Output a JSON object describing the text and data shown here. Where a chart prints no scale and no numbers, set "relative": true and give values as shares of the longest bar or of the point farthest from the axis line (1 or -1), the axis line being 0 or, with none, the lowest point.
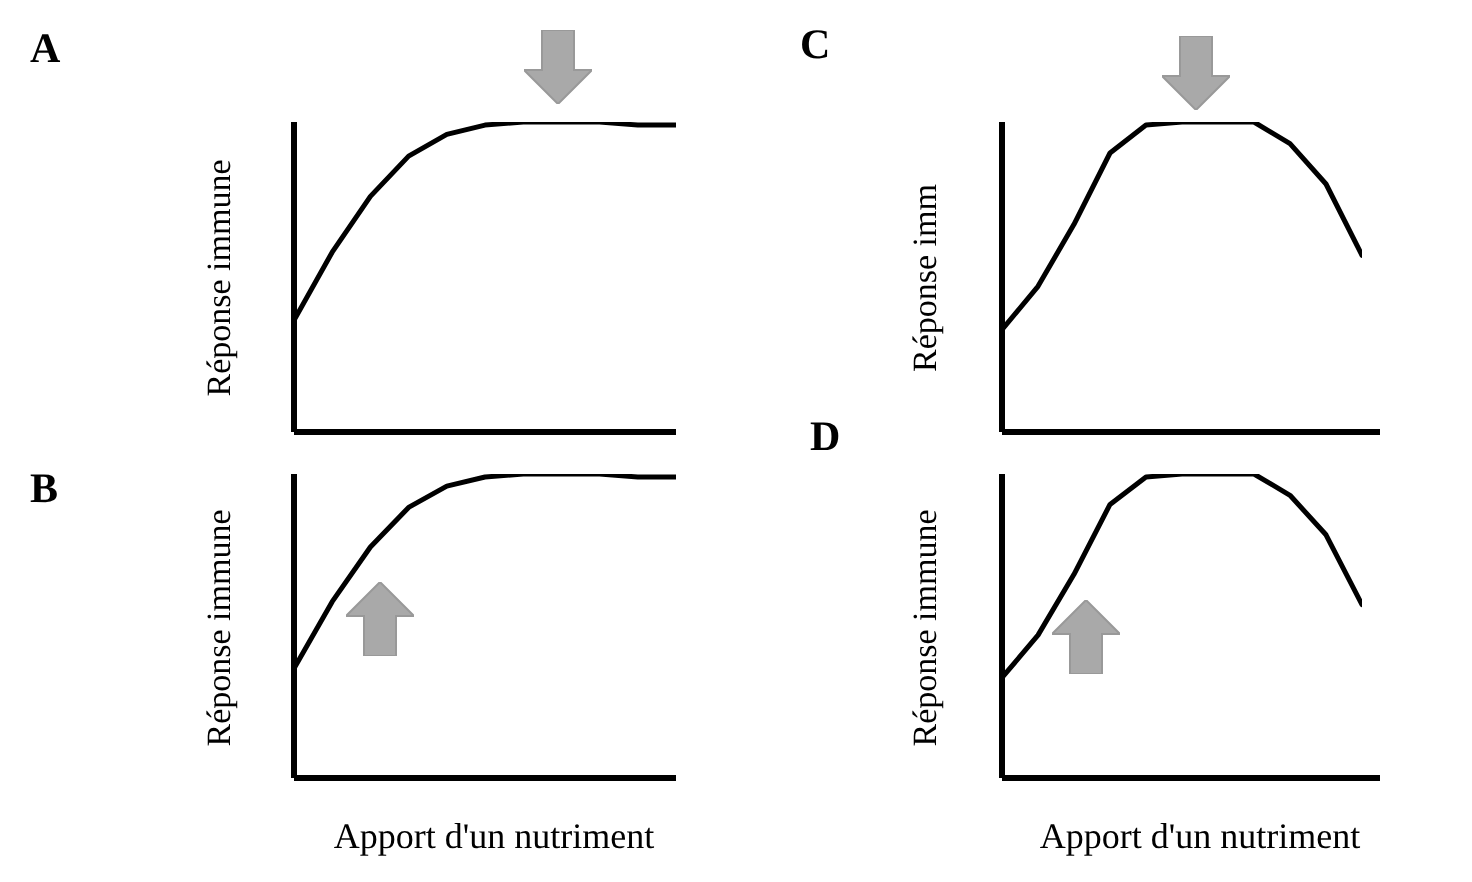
{
  "chart_data": [
    {
      "type": "line",
      "title": "A",
      "ylabel": "Réponse immune",
      "relative": true,
      "marker": "none",
      "categories": [
        null,
        null,
        null,
        null,
        null,
        null,
        null,
        null,
        null,
        null,
        null
      ],
      "series": [
        {
          "color": "#000000",
          "values": [
            0.36,
            0.58,
            0.76,
            0.89,
            0.96,
            0.99,
            1,
            1,
            1,
            0.99,
            0.99
          ]
        }
      ]
    },
    {
      "type": "line",
      "title": "B",
      "ylabel": "Réponse immune",
      "xlabel": "Apport d'un nutriment",
      "relative": true,
      "marker": "none",
      "categories": [
        null,
        null,
        null,
        null,
        null,
        null,
        null,
        null,
        null,
        null,
        null
      ],
      "series": [
        {
          "color": "#000000",
          "values": [
            0.36,
            0.58,
            0.76,
            0.89,
            0.96,
            0.99,
            1,
            1,
            1,
            0.99,
            0.99
          ]
        }
      ]
    },
    {
      "type": "line",
      "title": "C",
      "ylabel": "Réponse imm",
      "relative": true,
      "marker": "none",
      "categories": [
        null,
        null,
        null,
        null,
        null,
        null,
        null,
        null,
        null,
        null,
        null
      ],
      "series": [
        {
          "color": "#000000",
          "values": [
            0.33,
            0.47,
            0.67,
            0.9,
            0.99,
            1,
            1,
            1,
            0.93,
            0.8,
            0.57
          ]
        }
      ]
    },
    {
      "type": "line",
      "title": "D",
      "ylabel": "Réponse immune",
      "xlabel": "Apport d'un nutriment",
      "relative": true,
      "marker": "none",
      "categories": [
        null,
        null,
        null,
        null,
        null,
        null,
        null,
        null,
        null,
        null,
        null
      ],
      "series": [
        {
          "color": "#000000",
          "values": [
            0.33,
            0.47,
            0.67,
            0.9,
            0.99,
            1,
            1,
            1,
            0.93,
            0.8,
            0.57
          ]
        }
      ]
    }
  ]
}
